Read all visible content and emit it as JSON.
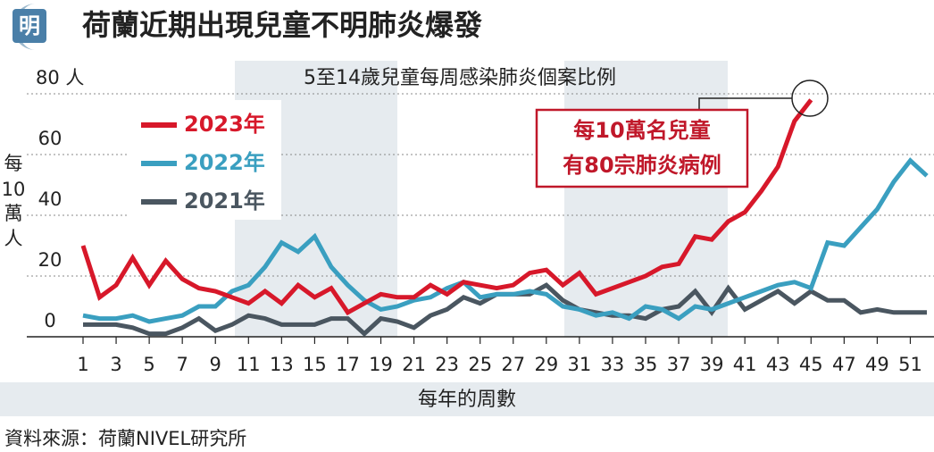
{
  "logo": "明",
  "chart_data": {
    "type": "line",
    "title": "荷蘭近期出現兒童不明肺炎爆發",
    "subtitle": "5至14歲兒童每周感染肺炎個案比例",
    "y_label": [
      "每",
      "10",
      "萬",
      "人"
    ],
    "x_label": "每年的周數",
    "source": "資料來源：荷蘭NIVEL研究所",
    "annotation": [
      "每10萬名兒童",
      "有80宗肺炎病例"
    ],
    "x": [
      1,
      2,
      3,
      4,
      5,
      6,
      7,
      8,
      9,
      10,
      11,
      12,
      13,
      14,
      15,
      16,
      17,
      18,
      19,
      20,
      21,
      22,
      23,
      24,
      25,
      26,
      27,
      28,
      29,
      30,
      31,
      32,
      33,
      34,
      35,
      36,
      37,
      38,
      39,
      40,
      41,
      42,
      43,
      44,
      45,
      46,
      47,
      48,
      49,
      50,
      51,
      52
    ],
    "xlim": [
      1,
      52
    ],
    "xticks": [
      1,
      3,
      5,
      7,
      9,
      11,
      13,
      15,
      17,
      19,
      21,
      23,
      25,
      27,
      29,
      31,
      33,
      35,
      37,
      39,
      41,
      43,
      45,
      47,
      49,
      51
    ],
    "ylim": [
      0,
      80
    ],
    "yticks": [
      0,
      20,
      40,
      60,
      {
        "value": 80,
        "label": "80 人"
      }
    ],
    "grid": true,
    "series": [
      {
        "name": "2023年",
        "color": "#d7182a",
        "values": [
          30,
          13,
          17,
          26,
          17,
          25,
          19,
          16,
          15,
          13,
          11,
          15,
          11,
          17,
          13,
          16,
          8,
          11,
          14,
          13,
          13,
          17,
          14,
          18,
          17,
          16,
          17,
          21,
          22,
          17,
          21,
          14,
          16,
          18,
          20,
          23,
          24,
          33,
          32,
          38,
          41,
          48,
          56,
          71,
          78,
          null,
          null,
          null,
          null,
          null,
          null,
          null
        ]
      },
      {
        "name": "2022年",
        "color": "#3a9fc0",
        "values": [
          7,
          6,
          6,
          7,
          5,
          6,
          7,
          10,
          10,
          15,
          17,
          23,
          31,
          28,
          33,
          23,
          17,
          12,
          9,
          10,
          12,
          13,
          16,
          18,
          13,
          14,
          14,
          15,
          14,
          10,
          9,
          7,
          8,
          6,
          10,
          9,
          6,
          10,
          9,
          11,
          13,
          15,
          17,
          18,
          16,
          31,
          30,
          36,
          42,
          51,
          58,
          53
        ]
      },
      {
        "name": "2021年",
        "color": "#4a5660",
        "values": [
          4,
          4,
          4,
          3,
          1,
          1,
          3,
          6,
          2,
          4,
          7,
          6,
          4,
          4,
          4,
          6,
          6,
          1,
          6,
          5,
          3,
          7,
          9,
          13,
          11,
          14,
          14,
          14,
          17,
          12,
          9,
          8,
          7,
          7,
          6,
          9,
          10,
          15,
          8,
          16,
          9,
          12,
          15,
          11,
          15,
          12,
          12,
          8,
          9,
          8,
          8,
          8
        ]
      }
    ]
  }
}
